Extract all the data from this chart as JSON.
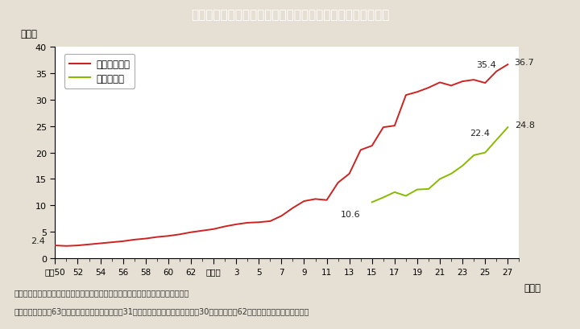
{
  "title": "Ｉ－１－５図　国の審議会等における女性委員の割合の推移",
  "title_bg_color": "#2bb5c8",
  "title_text_color": "#ffffff",
  "bg_color": "#e6e0d4",
  "plot_bg_color": "#ffffff",
  "ylabel": "（％）",
  "xlabel_right": "（年）",
  "ylim": [
    0,
    40
  ],
  "yticks": [
    0,
    5,
    10,
    15,
    20,
    25,
    30,
    35,
    40
  ],
  "legend1_label": "審議会等委員",
  "legend2_label": "専門委員等",
  "legend1_color": "#cc2222",
  "legend2_color": "#88bb00",
  "footnote1": "（備考）１．内閣府「国の審議会等における女性委員の参画状況調べ」より作成。",
  "footnote2": "　　　　２．昭和63年から平成６年は，各年３月31日現在。７年以降は，各年９月30日現在。昭和62年以前は，年により異なる。",
  "x_tick_labels": [
    "昭和50",
    "52",
    "54",
    "56",
    "58",
    "60",
    "62",
    "平成元",
    "3",
    "5",
    "7",
    "9",
    "11",
    "13",
    "15",
    "17",
    "19",
    "21",
    "23",
    "25",
    "27"
  ],
  "x_positions": [
    1975,
    1977,
    1979,
    1981,
    1983,
    1985,
    1987,
    1989,
    1991,
    1993,
    1995,
    1997,
    1999,
    2001,
    2003,
    2005,
    2007,
    2009,
    2011,
    2013,
    2015
  ],
  "xlim_left": 1975,
  "xlim_right": 2016,
  "red_x": [
    1975,
    1976,
    1977,
    1978,
    1979,
    1980,
    1981,
    1982,
    1983,
    1984,
    1985,
    1986,
    1987,
    1988,
    1989,
    1990,
    1991,
    1992,
    1993,
    1994,
    1995,
    1996,
    1997,
    1998,
    1999,
    2000,
    2001,
    2002,
    2003,
    2004,
    2005,
    2006,
    2007,
    2008,
    2009,
    2010,
    2011,
    2012,
    2013,
    2014,
    2015
  ],
  "red_y": [
    2.4,
    2.3,
    2.4,
    2.6,
    2.8,
    3.0,
    3.2,
    3.5,
    3.7,
    4.0,
    4.2,
    4.5,
    4.9,
    5.2,
    5.5,
    6.0,
    6.4,
    6.7,
    6.8,
    7.0,
    8.0,
    9.5,
    10.8,
    11.2,
    11.0,
    14.3,
    16.0,
    20.5,
    21.3,
    24.8,
    25.1,
    30.9,
    31.5,
    32.3,
    33.3,
    32.7,
    33.5,
    33.8,
    33.2,
    35.4,
    36.7
  ],
  "green_x": [
    2003,
    2004,
    2005,
    2006,
    2007,
    2008,
    2009,
    2010,
    2011,
    2012,
    2013,
    2014,
    2015
  ],
  "green_y": [
    10.6,
    11.5,
    12.5,
    11.8,
    13.0,
    13.1,
    15.0,
    16.0,
    17.5,
    19.5,
    20.0,
    22.4,
    24.8
  ]
}
